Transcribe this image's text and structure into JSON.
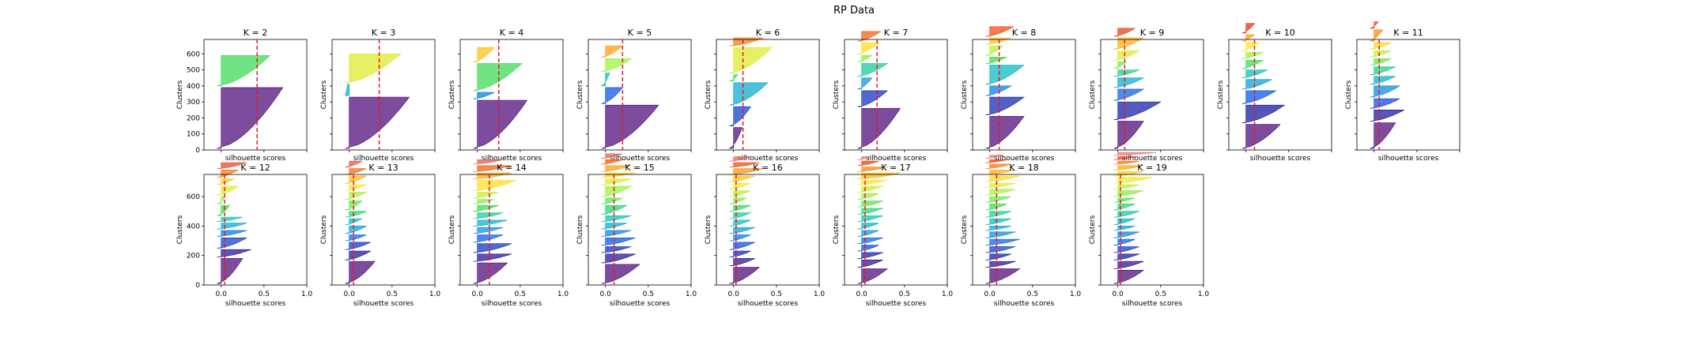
{
  "figure": {
    "title": "RP Data",
    "ticks": {
      "x": [
        "0.0",
        "0.5",
        "1.0"
      ],
      "y_top": [
        "0",
        "100",
        "200",
        "300",
        "400",
        "500",
        "600"
      ],
      "y_bottom": [
        "0",
        "200",
        "400",
        "600"
      ]
    },
    "colors": {
      "mean_line": "#e41a1c",
      "cluster_colormap": "nipy_spectral-like (dark blue to red)"
    }
  },
  "chart_data": [
    {
      "type": "area",
      "title": "K = 2",
      "xlabel": "silhouette scores",
      "ylabel": "Clusters",
      "xlim": [
        -0.2,
        1.0
      ],
      "ylim": [
        0,
        690
      ],
      "mean_silhouette": 0.42,
      "clusters": [
        {
          "size": 380,
          "max": 0.72
        },
        {
          "size": 190,
          "max": 0.57
        }
      ],
      "shown_xticks": false,
      "shown_yticks": true
    },
    {
      "type": "area",
      "title": "K = 3",
      "xlabel": "silhouette scores",
      "ylabel": "Clusters",
      "xlim": [
        -0.2,
        1.0
      ],
      "ylim": [
        0,
        690
      ],
      "mean_silhouette": 0.35,
      "clusters": [
        {
          "size": 320,
          "max": 0.7
        },
        {
          "size": 70,
          "max": -0.02
        },
        {
          "size": 180,
          "max": 0.6
        }
      ],
      "shown_xticks": false,
      "shown_yticks": false
    },
    {
      "type": "area",
      "title": "K = 4",
      "xlabel": "silhouette scores",
      "ylabel": "Clusters",
      "xlim": [
        -0.2,
        1.0
      ],
      "ylim": [
        0,
        690
      ],
      "mean_silhouette": 0.25,
      "clusters": [
        {
          "size": 300,
          "max": 0.58
        },
        {
          "size": 40,
          "max": 0.2
        },
        {
          "size": 170,
          "max": 0.52
        },
        {
          "size": 90,
          "max": 0.2
        }
      ],
      "shown_xticks": false,
      "shown_yticks": false
    },
    {
      "type": "area",
      "title": "K = 5",
      "xlabel": "silhouette scores",
      "ylabel": "Clusters",
      "xlim": [
        -0.2,
        1.0
      ],
      "ylim": [
        0,
        690
      ],
      "mean_silhouette": 0.2,
      "clusters": [
        {
          "size": 270,
          "max": 0.62
        },
        {
          "size": 100,
          "max": 0.2
        },
        {
          "size": 80,
          "max": 0.05
        },
        {
          "size": 80,
          "max": 0.3
        },
        {
          "size": 70,
          "max": 0.2
        }
      ],
      "shown_xticks": false,
      "shown_yticks": false
    },
    {
      "type": "area",
      "title": "K = 6",
      "xlabel": "silhouette scores",
      "ylabel": "Clusters",
      "xlim": [
        -0.2,
        1.0
      ],
      "ylim": [
        0,
        690
      ],
      "mean_silhouette": 0.11,
      "clusters": [
        {
          "size": 130,
          "max": 0.1
        },
        {
          "size": 120,
          "max": 0.2
        },
        {
          "size": 140,
          "max": 0.4
        },
        {
          "size": 40,
          "max": 0.05
        },
        {
          "size": 160,
          "max": 0.45
        },
        {
          "size": 50,
          "max": 0.35
        }
      ],
      "shown_xticks": false,
      "shown_yticks": false
    },
    {
      "type": "area",
      "title": "K = 7",
      "xlabel": "silhouette scores",
      "ylabel": "Clusters",
      "xlim": [
        -0.2,
        1.0
      ],
      "ylim": [
        0,
        690
      ],
      "mean_silhouette": 0.18,
      "clusters": [
        {
          "size": 250,
          "max": 0.45
        },
        {
          "size": 100,
          "max": 0.3
        },
        {
          "size": 70,
          "max": 0.12
        },
        {
          "size": 80,
          "max": 0.3
        },
        {
          "size": 40,
          "max": 0.12
        },
        {
          "size": 70,
          "max": 0.2
        },
        {
          "size": 60,
          "max": 0.22
        }
      ],
      "shown_xticks": false,
      "shown_yticks": false
    },
    {
      "type": "area",
      "title": "K = 8",
      "xlabel": "silhouette scores",
      "ylabel": "Clusters",
      "xlim": [
        -0.2,
        1.0
      ],
      "ylim": [
        0,
        690
      ],
      "mean_silhouette": 0.11,
      "clusters": [
        {
          "size": 200,
          "max": 0.4
        },
        {
          "size": 110,
          "max": 0.4
        },
        {
          "size": 60,
          "max": 0.25
        },
        {
          "size": 120,
          "max": 0.4
        },
        {
          "size": 40,
          "max": 0.2
        },
        {
          "size": 60,
          "max": 0.15
        },
        {
          "size": 40,
          "max": 0.25
        },
        {
          "size": 60,
          "max": 0.28
        }
      ],
      "shown_xticks": false,
      "shown_yticks": false
    },
    {
      "type": "area",
      "title": "K = 9",
      "xlabel": "silhouette scores",
      "ylabel": "Clusters",
      "xlim": [
        -0.2,
        1.0
      ],
      "ylim": [
        0,
        690
      ],
      "mean_silhouette": 0.08,
      "clusters": [
        {
          "size": 170,
          "max": 0.3
        },
        {
          "size": 110,
          "max": 0.5
        },
        {
          "size": 70,
          "max": 0.3
        },
        {
          "size": 60,
          "max": 0.3
        },
        {
          "size": 40,
          "max": 0.25
        },
        {
          "size": 40,
          "max": 0.1
        },
        {
          "size": 60,
          "max": 0.25
        },
        {
          "size": 70,
          "max": 0.3
        },
        {
          "size": 50,
          "max": 0.2
        }
      ],
      "shown_xticks": false,
      "shown_yticks": false
    },
    {
      "type": "area",
      "title": "K = 10",
      "xlabel": "silhouette scores",
      "ylabel": "Clusters",
      "xlim": [
        -0.2,
        1.0
      ],
      "ylim": [
        0,
        690
      ],
      "mean_silhouette": 0.1,
      "clusters": [
        {
          "size": 150,
          "max": 0.4
        },
        {
          "size": 110,
          "max": 0.45
        },
        {
          "size": 80,
          "max": 0.35
        },
        {
          "size": 60,
          "max": 0.3
        },
        {
          "size": 50,
          "max": 0.25
        },
        {
          "size": 50,
          "max": 0.2
        },
        {
          "size": 40,
          "max": 0.2
        },
        {
          "size": 50,
          "max": 0.15
        },
        {
          "size": 40,
          "max": 0.1
        },
        {
          "size": 60,
          "max": 0.1
        }
      ],
      "shown_xticks": false,
      "shown_yticks": false
    },
    {
      "type": "area",
      "title": "K = 11",
      "xlabel": "silhouette scores",
      "ylabel": "Clusters",
      "xlim": [
        -0.2,
        1.0
      ],
      "ylim": [
        0,
        690
      ],
      "mean_silhouette": 0.06,
      "clusters": [
        {
          "size": 160,
          "max": 0.25
        },
        {
          "size": 70,
          "max": 0.35
        },
        {
          "size": 60,
          "max": 0.3
        },
        {
          "size": 70,
          "max": 0.3
        },
        {
          "size": 50,
          "max": 0.25
        },
        {
          "size": 50,
          "max": 0.25
        },
        {
          "size": 40,
          "max": 0.2
        },
        {
          "size": 40,
          "max": 0.2
        },
        {
          "size": 40,
          "max": 0.2
        },
        {
          "size": 70,
          "max": 0.1
        },
        {
          "size": 40,
          "max": 0.05
        }
      ],
      "shown_xticks": false,
      "shown_yticks": false
    },
    {
      "type": "area",
      "title": "K = 12",
      "xlabel": "silhouette scores",
      "ylabel": "Clusters",
      "xlim": [
        -0.2,
        1.0
      ],
      "ylim": [
        0,
        750
      ],
      "mean_silhouette": 0.04,
      "clusters": [
        {
          "size": 170,
          "max": 0.25
        },
        {
          "size": 50,
          "max": 0.35
        },
        {
          "size": 70,
          "max": 0.3
        },
        {
          "size": 40,
          "max": 0.3
        },
        {
          "size": 40,
          "max": 0.3
        },
        {
          "size": 30,
          "max": 0.25
        },
        {
          "size": 70,
          "max": 0.1
        },
        {
          "size": 50,
          "max": 0.05
        },
        {
          "size": 60,
          "max": 0.2
        },
        {
          "size": 40,
          "max": 0.15
        },
        {
          "size": 50,
          "max": 0.2
        },
        {
          "size": 40,
          "max": 0.3
        }
      ],
      "shown_xticks": true,
      "shown_yticks": true
    },
    {
      "type": "area",
      "title": "K = 13",
      "xlabel": "silhouette scores",
      "ylabel": "Clusters",
      "xlim": [
        -0.2,
        1.0
      ],
      "ylim": [
        0,
        750
      ],
      "mean_silhouette": 0.05,
      "clusters": [
        {
          "size": 150,
          "max": 0.3
        },
        {
          "size": 60,
          "max": 0.25
        },
        {
          "size": 50,
          "max": 0.25
        },
        {
          "size": 40,
          "max": 0.2
        },
        {
          "size": 50,
          "max": 0.2
        },
        {
          "size": 40,
          "max": 0.15
        },
        {
          "size": 40,
          "max": 0.2
        },
        {
          "size": 60,
          "max": 0.15
        },
        {
          "size": 50,
          "max": 0.2
        },
        {
          "size": 40,
          "max": 0.2
        },
        {
          "size": 50,
          "max": 0.2
        },
        {
          "size": 40,
          "max": 0.2
        },
        {
          "size": 40,
          "max": 0.15
        }
      ],
      "shown_xticks": true,
      "shown_yticks": false
    },
    {
      "type": "area",
      "title": "K = 14",
      "xlabel": "silhouette scores",
      "ylabel": "Clusters",
      "xlim": [
        -0.2,
        1.0
      ],
      "ylim": [
        0,
        750
      ],
      "mean_silhouette": 0.14,
      "clusters": [
        {
          "size": 140,
          "max": 0.35
        },
        {
          "size": 50,
          "max": 0.4
        },
        {
          "size": 60,
          "max": 0.4
        },
        {
          "size": 50,
          "max": 0.3
        },
        {
          "size": 40,
          "max": 0.3
        },
        {
          "size": 40,
          "max": 0.35
        },
        {
          "size": 40,
          "max": 0.3
        },
        {
          "size": 40,
          "max": 0.25
        },
        {
          "size": 30,
          "max": 0.2
        },
        {
          "size": 40,
          "max": 0.25
        },
        {
          "size": 70,
          "max": 0.45
        },
        {
          "size": 40,
          "max": 0.4
        },
        {
          "size": 40,
          "max": 0.4
        },
        {
          "size": 30,
          "max": 0.3
        }
      ],
      "shown_xticks": true,
      "shown_yticks": false
    },
    {
      "type": "area",
      "title": "K = 15",
      "xlabel": "silhouette scores",
      "ylabel": "Clusters",
      "xlim": [
        -0.2,
        1.0
      ],
      "ylim": [
        0,
        750
      ],
      "mean_silhouette": 0.1,
      "clusters": [
        {
          "size": 130,
          "max": 0.4
        },
        {
          "size": 60,
          "max": 0.35
        },
        {
          "size": 40,
          "max": 0.3
        },
        {
          "size": 50,
          "max": 0.35
        },
        {
          "size": 40,
          "max": 0.3
        },
        {
          "size": 40,
          "max": 0.25
        },
        {
          "size": 40,
          "max": 0.3
        },
        {
          "size": 60,
          "max": 0.25
        },
        {
          "size": 40,
          "max": 0.2
        },
        {
          "size": 70,
          "max": 0.3
        },
        {
          "size": 40,
          "max": 0.3
        },
        {
          "size": 30,
          "max": 0.35
        },
        {
          "size": 40,
          "max": 0.3
        },
        {
          "size": 30,
          "max": 0.2
        },
        {
          "size": 30,
          "max": 0.2
        }
      ],
      "shown_xticks": true,
      "shown_yticks": false
    },
    {
      "type": "area",
      "title": "K = 16",
      "xlabel": "silhouette scores",
      "ylabel": "Clusters",
      "xlim": [
        -0.2,
        1.0
      ],
      "ylim": [
        0,
        750
      ],
      "mean_silhouette": 0.03,
      "clusters": [
        {
          "size": 110,
          "max": 0.3
        },
        {
          "size": 50,
          "max": 0.25
        },
        {
          "size": 40,
          "max": 0.2
        },
        {
          "size": 50,
          "max": 0.25
        },
        {
          "size": 40,
          "max": 0.2
        },
        {
          "size": 40,
          "max": 0.25
        },
        {
          "size": 40,
          "max": 0.2
        },
        {
          "size": 40,
          "max": 0.2
        },
        {
          "size": 40,
          "max": 0.2
        },
        {
          "size": 40,
          "max": 0.15
        },
        {
          "size": 40,
          "max": 0.2
        },
        {
          "size": 40,
          "max": 0.2
        },
        {
          "size": 40,
          "max": 0.25
        },
        {
          "size": 40,
          "max": 0.35
        },
        {
          "size": 30,
          "max": 0.3
        },
        {
          "size": 30,
          "max": 0.2
        }
      ],
      "shown_xticks": true,
      "shown_yticks": false
    },
    {
      "type": "area",
      "title": "K = 17",
      "xlabel": "silhouette scores",
      "ylabel": "Clusters",
      "xlim": [
        -0.2,
        1.0
      ],
      "ylim": [
        0,
        750
      ],
      "mean_silhouette": 0.04,
      "clusters": [
        {
          "size": 100,
          "max": 0.3
        },
        {
          "size": 50,
          "max": 0.25
        },
        {
          "size": 40,
          "max": 0.25
        },
        {
          "size": 40,
          "max": 0.2
        },
        {
          "size": 40,
          "max": 0.25
        },
        {
          "size": 40,
          "max": 0.2
        },
        {
          "size": 40,
          "max": 0.2
        },
        {
          "size": 40,
          "max": 0.25
        },
        {
          "size": 40,
          "max": 0.25
        },
        {
          "size": 40,
          "max": 0.25
        },
        {
          "size": 40,
          "max": 0.2
        },
        {
          "size": 40,
          "max": 0.25
        },
        {
          "size": 30,
          "max": 0.3
        },
        {
          "size": 40,
          "max": 0.45
        },
        {
          "size": 30,
          "max": 0.3
        },
        {
          "size": 30,
          "max": 0.2
        },
        {
          "size": 20,
          "max": 0.1
        }
      ],
      "shown_xticks": true,
      "shown_yticks": false
    },
    {
      "type": "area",
      "title": "K = 18",
      "xlabel": "silhouette scores",
      "ylabel": "Clusters",
      "xlim": [
        -0.2,
        1.0
      ],
      "ylim": [
        0,
        750
      ],
      "mean_silhouette": 0.08,
      "clusters": [
        {
          "size": 100,
          "max": 0.35
        },
        {
          "size": 40,
          "max": 0.3
        },
        {
          "size": 40,
          "max": 0.25
        },
        {
          "size": 40,
          "max": 0.3
        },
        {
          "size": 40,
          "max": 0.35
        },
        {
          "size": 40,
          "max": 0.3
        },
        {
          "size": 30,
          "max": 0.25
        },
        {
          "size": 40,
          "max": 0.25
        },
        {
          "size": 40,
          "max": 0.25
        },
        {
          "size": 40,
          "max": 0.2
        },
        {
          "size": 40,
          "max": 0.25
        },
        {
          "size": 40,
          "max": 0.3
        },
        {
          "size": 30,
          "max": 0.3
        },
        {
          "size": 40,
          "max": 0.35
        },
        {
          "size": 30,
          "max": 0.3
        },
        {
          "size": 30,
          "max": 0.25
        },
        {
          "size": 20,
          "max": 0.2
        },
        {
          "size": 20,
          "max": 0.15
        }
      ],
      "shown_xticks": true,
      "shown_yticks": false
    },
    {
      "type": "area",
      "title": "K = 19",
      "xlabel": "silhouette scores",
      "ylabel": "Clusters",
      "xlim": [
        -0.2,
        1.0
      ],
      "ylim": [
        0,
        750
      ],
      "mean_silhouette": 0.03,
      "clusters": [
        {
          "size": 90,
          "max": 0.3
        },
        {
          "size": 50,
          "max": 0.3
        },
        {
          "size": 40,
          "max": 0.25
        },
        {
          "size": 40,
          "max": 0.25
        },
        {
          "size": 40,
          "max": 0.2
        },
        {
          "size": 40,
          "max": 0.25
        },
        {
          "size": 30,
          "max": 0.2
        },
        {
          "size": 40,
          "max": 0.2
        },
        {
          "size": 40,
          "max": 0.25
        },
        {
          "size": 40,
          "max": 0.2
        },
        {
          "size": 30,
          "max": 0.2
        },
        {
          "size": 40,
          "max": 0.3
        },
        {
          "size": 30,
          "max": 0.25
        },
        {
          "size": 40,
          "max": 0.4
        },
        {
          "size": 30,
          "max": 0.3
        },
        {
          "size": 30,
          "max": 0.3
        },
        {
          "size": 20,
          "max": 0.25
        },
        {
          "size": 20,
          "max": 0.2
        },
        {
          "size": 20,
          "max": 0.45
        }
      ],
      "shown_xticks": true,
      "shown_yticks": false
    }
  ]
}
